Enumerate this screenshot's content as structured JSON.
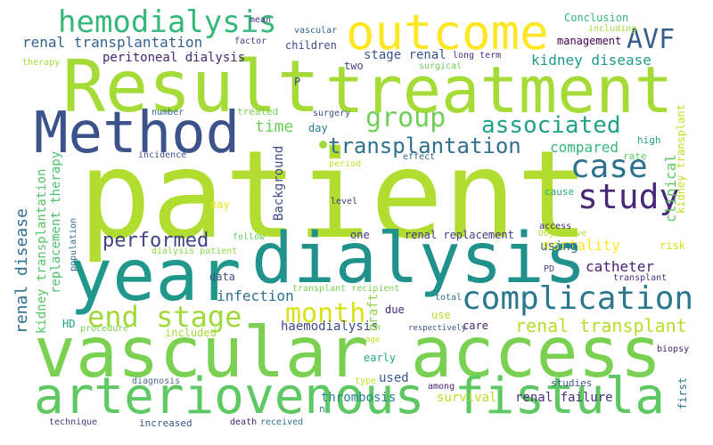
{
  "words": [
    {
      "text": "patient",
      "color": "#b0dd2f"
    },
    {
      "text": "vascular access",
      "color": "#7ad151"
    },
    {
      "text": "dialysis",
      "color": "#21918c"
    },
    {
      "text": "arteriovenous fistula",
      "color": "#5ec962"
    },
    {
      "text": "Result",
      "color": "#a5db36"
    },
    {
      "text": "treatment",
      "color": "#a5db36"
    },
    {
      "text": "year",
      "color": "#1f988b"
    },
    {
      "text": "Method",
      "color": "#3b528b"
    },
    {
      "text": "outcome",
      "color": "#fde725"
    },
    {
      "text": "complication",
      "color": "#2a788e"
    },
    {
      "text": "hemodialysis",
      "color": "#35b779"
    },
    {
      "text": "end stage",
      "color": "#a0da39"
    },
    {
      "text": "study",
      "color": "#482878"
    },
    {
      "text": "month",
      "color": "#d8e219"
    },
    {
      "text": "case",
      "color": "#2c728e"
    },
    {
      "text": "group",
      "color": "#6ece58"
    },
    {
      "text": "associated",
      "color": "#1fa187"
    },
    {
      "text": "AVF",
      "color": "#355f8d"
    },
    {
      "text": "transplantation",
      "color": "#2e6f8e"
    },
    {
      "text": "performed",
      "color": "#414487"
    },
    {
      "text": "renal transplant",
      "color": "#b5de2b"
    },
    {
      "text": "renal disease",
      "color": "#2e6e8e"
    },
    {
      "text": "renal transplantation",
      "color": "#33638d"
    },
    {
      "text": "peritoneal dialysis",
      "color": "#482677"
    },
    {
      "text": "kidney disease",
      "color": "#1f9a8a"
    },
    {
      "text": "stage renal",
      "color": "#39568c"
    },
    {
      "text": "time",
      "color": "#6ccd5a"
    },
    {
      "text": "clinical",
      "color": "#5ec962"
    },
    {
      "text": "kidney transplant",
      "color": "#bddf26"
    },
    {
      "text": "compared",
      "color": "#35b779"
    },
    {
      "text": "Background",
      "color": "#3e4989"
    },
    {
      "text": "mortality",
      "color": "#fde725"
    },
    {
      "text": "catheter",
      "color": "#481f70"
    },
    {
      "text": "infection",
      "color": "#2c728e"
    },
    {
      "text": "using",
      "color": "#2d708e"
    },
    {
      "text": "graft",
      "color": "#8bd646"
    },
    {
      "text": "haemodialysis",
      "color": "#3e4989"
    },
    {
      "text": "used",
      "color": "#375b8d"
    },
    {
      "text": "survival",
      "color": "#b8de29"
    },
    {
      "text": "renal failure",
      "color": "#472d7b"
    },
    {
      "text": "thrombosis",
      "color": "#25858e"
    },
    {
      "text": "renal replacement",
      "color": "#453781"
    },
    {
      "text": "kidney transplantation",
      "color": "#54c568"
    },
    {
      "text": "replacement therapy",
      "color": "#4ac16d"
    },
    {
      "text": "management",
      "color": "#440154"
    },
    {
      "text": "Conclusion",
      "color": "#37b878"
    },
    {
      "text": "children",
      "color": "#3e4989"
    },
    {
      "text": "data",
      "color": "#3b528b"
    },
    {
      "text": "risk",
      "color": "#d2e21b"
    },
    {
      "text": "HD",
      "color": "#1e9c89"
    },
    {
      "text": "included",
      "color": "#a5db36"
    },
    {
      "text": "due",
      "color": "#482475"
    },
    {
      "text": "use",
      "color": "#b0dd2f"
    },
    {
      "text": "care",
      "color": "#481c6e"
    },
    {
      "text": "early",
      "color": "#22a884"
    },
    {
      "text": "one",
      "color": "#453781"
    },
    {
      "text": "may",
      "color": "#eae51a"
    },
    {
      "text": "level",
      "color": "#443983"
    },
    {
      "text": "follow",
      "color": "#5ec962"
    },
    {
      "text": "day",
      "color": "#287d8e"
    },
    {
      "text": "surgery",
      "color": "#3d4d8a"
    },
    {
      "text": "treated",
      "color": "#75d054"
    },
    {
      "text": "high",
      "color": "#20a386"
    },
    {
      "text": "rate",
      "color": "#5ec962"
    },
    {
      "text": "cause",
      "color": "#26ad81"
    },
    {
      "text": "first",
      "color": "#2a788e"
    },
    {
      "text": "studies",
      "color": "#3b528b"
    },
    {
      "text": "biopsy",
      "color": "#482173"
    },
    {
      "text": "P",
      "color": "#3f4788"
    },
    {
      "text": "two",
      "color": "#404688"
    },
    {
      "text": "factor",
      "color": "#433e85"
    },
    {
      "text": "mean",
      "color": "#453781"
    },
    {
      "text": "vascular",
      "color": "#33638d"
    },
    {
      "text": "including",
      "color": "#a5db36"
    },
    {
      "text": "long term",
      "color": "#472d7b"
    },
    {
      "text": "surgical",
      "color": "#6ccd5a"
    },
    {
      "text": "therapy",
      "color": "#a0da39"
    },
    {
      "text": "population",
      "color": "#2e6e8e"
    },
    {
      "text": "number",
      "color": "#31688e"
    },
    {
      "text": "incidence",
      "color": "#3b528b"
    },
    {
      "text": "effect",
      "color": "#355f8d"
    },
    {
      "text": "period",
      "color": "#c2df23"
    },
    {
      "text": "Objective",
      "color": "#b0dd2f"
    },
    {
      "text": "access",
      "color": "#482878"
    },
    {
      "text": "transplant",
      "color": "#46327e"
    },
    {
      "text": "PD",
      "color": "#404688"
    },
    {
      "text": "total",
      "color": "#2c728e"
    },
    {
      "text": "transplant recipient",
      "color": "#7ad151"
    },
    {
      "text": "dialysis patient",
      "color": "#8bd646"
    },
    {
      "text": "procedure",
      "color": "#7ad151"
    },
    {
      "text": "respectively",
      "color": "#3b528b"
    },
    {
      "text": "age",
      "color": "#b5de2b"
    },
    {
      "text": "diagnosis",
      "color": "#4e6c8f"
    },
    {
      "text": "type",
      "color": "#b8de29"
    },
    {
      "text": "among",
      "color": "#481f70"
    },
    {
      "text": "n",
      "color": "#26828e"
    },
    {
      "text": "technique",
      "color": "#46337e"
    },
    {
      "text": "increased",
      "color": "#3a548c"
    },
    {
      "text": "death",
      "color": "#482475"
    },
    {
      "text": "received",
      "color": "#2c728e"
    }
  ]
}
